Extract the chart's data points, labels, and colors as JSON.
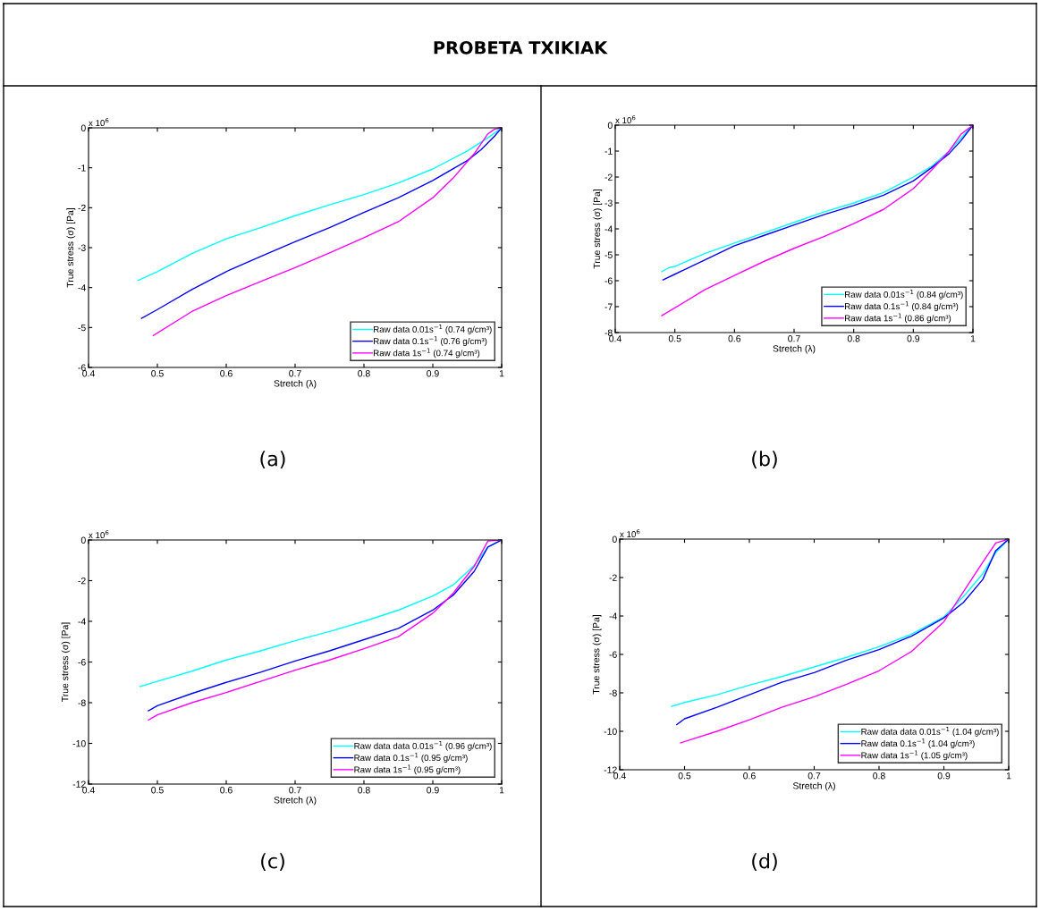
{
  "chart_data": [
    {
      "type": "line",
      "title": "PROBETA TXIKIAK",
      "xlabel": "Stretch (λ)",
      "ylabel": "True stress (σ) [Pa]",
      "annotations": [
        "x 10$^{6}$",
        "(a)"
      ],
      "xlim": [
        0.4,
        1
      ],
      "ylim": [
        -6,
        0
      ],
      "xticks": [
        0.4,
        0.5,
        0.6,
        0.7,
        0.8,
        0.9,
        1
      ],
      "yticks": [
        -6,
        -5,
        -4,
        -3,
        -2,
        -1,
        0
      ],
      "grid": false,
      "legend": "bottom right",
      "series": [
        {
          "name": "Raw data 0.01s$^{−1}$ (0.74 g/cm³)",
          "color": "#00ffff",
          "x": [
            0.472,
            0.5,
            0.55,
            0.6,
            0.65,
            0.7,
            0.75,
            0.8,
            0.85,
            0.9,
            0.95,
            0.98,
            1.0
          ],
          "values": [
            -3.82,
            -3.6,
            -3.15,
            -2.78,
            -2.5,
            -2.2,
            -1.93,
            -1.67,
            -1.38,
            -1.03,
            -0.58,
            -0.25,
            0
          ]
        },
        {
          "name": "Raw data 0.1s$^{−1}$ (0.76 g/cm³)",
          "color": "#0000ff",
          "x": [
            0.477,
            0.5,
            0.55,
            0.6,
            0.65,
            0.7,
            0.75,
            0.8,
            0.85,
            0.9,
            0.95,
            0.97,
            0.99,
            1.0
          ],
          "values": [
            -4.77,
            -4.55,
            -4.05,
            -3.6,
            -3.22,
            -2.85,
            -2.5,
            -2.12,
            -1.75,
            -1.32,
            -0.82,
            -0.55,
            -0.2,
            0
          ]
        },
        {
          "name": "Raw data 1s$^{−1}$ (0.74 g/cm³)",
          "color": "#ff00ff",
          "x": [
            0.494,
            0.55,
            0.6,
            0.65,
            0.7,
            0.75,
            0.8,
            0.85,
            0.9,
            0.93,
            0.96,
            0.98,
            0.99,
            1.0
          ],
          "values": [
            -5.2,
            -4.6,
            -4.2,
            -3.85,
            -3.5,
            -3.13,
            -2.75,
            -2.35,
            -1.75,
            -1.25,
            -0.65,
            -0.15,
            -0.03,
            0
          ]
        }
      ]
    },
    {
      "type": "line",
      "xlabel": "Stretch (λ)",
      "ylabel": "True stress (σ) [Pa]",
      "annotations": [
        "x 10$^{6}$",
        "(b)"
      ],
      "xlim": [
        0.4,
        1
      ],
      "ylim": [
        -8,
        0
      ],
      "xticks": [
        0.4,
        0.5,
        0.6,
        0.7,
        0.8,
        0.9,
        1
      ],
      "yticks": [
        -8,
        -7,
        -6,
        -5,
        -4,
        -3,
        -2,
        -1,
        0
      ],
      "grid": false,
      "legend": "bottom right",
      "series": [
        {
          "name": "Raw data 0.01s$^{−1}$ (0.84 g/cm³)",
          "color": "#00ffff",
          "x": [
            0.478,
            0.49,
            0.5,
            0.55,
            0.6,
            0.65,
            0.7,
            0.75,
            0.8,
            0.85,
            0.9,
            0.93,
            0.96,
            0.98,
            1.0
          ],
          "values": [
            -5.65,
            -5.5,
            -5.45,
            -4.95,
            -4.55,
            -4.15,
            -3.75,
            -3.35,
            -3.0,
            -2.6,
            -2.0,
            -1.6,
            -1.0,
            -0.5,
            0
          ]
        },
        {
          "name": "Raw data 0.1s$^{−1}$ (0.84 g/cm³)",
          "color": "#0000ff",
          "x": [
            0.48,
            0.5,
            0.55,
            0.6,
            0.65,
            0.7,
            0.75,
            0.8,
            0.85,
            0.9,
            0.93,
            0.96,
            0.98,
            1.0
          ],
          "values": [
            -5.97,
            -5.75,
            -5.2,
            -4.65,
            -4.25,
            -3.85,
            -3.45,
            -3.1,
            -2.7,
            -2.15,
            -1.65,
            -1.1,
            -0.6,
            0
          ]
        },
        {
          "name": "Raw data 1s$^{−1}$ (0.86 g/cm³)",
          "color": "#ff00ff",
          "x": [
            0.478,
            0.5,
            0.55,
            0.6,
            0.65,
            0.7,
            0.75,
            0.8,
            0.85,
            0.9,
            0.93,
            0.96,
            0.98,
            1.0
          ],
          "values": [
            -7.35,
            -7.05,
            -6.35,
            -5.8,
            -5.25,
            -4.75,
            -4.3,
            -3.8,
            -3.25,
            -2.45,
            -1.75,
            -1.0,
            -0.35,
            0
          ]
        }
      ]
    },
    {
      "type": "line",
      "xlabel": "Stretch (λ)",
      "ylabel": "True stress (σ) [Pa]",
      "annotations": [
        "x 10$^{6}$",
        "(c)"
      ],
      "xlim": [
        0.4,
        1
      ],
      "ylim": [
        -12,
        0
      ],
      "xticks": [
        0.4,
        0.5,
        0.6,
        0.7,
        0.8,
        0.9,
        1
      ],
      "yticks": [
        -12,
        -10,
        -8,
        -6,
        -4,
        -2,
        0
      ],
      "grid": false,
      "legend": "bottom right",
      "series": [
        {
          "name": "Raw data data 0.01s$^{−1}$ (0.96 g/cm³)",
          "color": "#00ffff",
          "x": [
            0.475,
            0.5,
            0.55,
            0.6,
            0.65,
            0.7,
            0.75,
            0.8,
            0.85,
            0.9,
            0.93,
            0.96,
            0.98,
            1.0
          ],
          "values": [
            -7.2,
            -6.95,
            -6.45,
            -5.9,
            -5.45,
            -4.95,
            -4.5,
            -4.0,
            -3.45,
            -2.75,
            -2.2,
            -1.25,
            -0.35,
            0
          ]
        },
        {
          "name": "Raw data 0.1s$^{−1}$ (0.95 g/cm³)",
          "color": "#0000ff",
          "x": [
            0.487,
            0.5,
            0.55,
            0.6,
            0.65,
            0.7,
            0.75,
            0.8,
            0.85,
            0.9,
            0.93,
            0.96,
            0.98,
            1.0
          ],
          "values": [
            -8.4,
            -8.15,
            -7.55,
            -7.0,
            -6.5,
            -5.95,
            -5.45,
            -4.9,
            -4.35,
            -3.45,
            -2.7,
            -1.55,
            -0.35,
            0
          ]
        },
        {
          "name": "Raw data 1s$^{−1}$ (0.95 g/cm³)",
          "color": "#ff00ff",
          "x": [
            0.487,
            0.5,
            0.55,
            0.6,
            0.65,
            0.7,
            0.75,
            0.8,
            0.85,
            0.9,
            0.93,
            0.96,
            0.98,
            1.0
          ],
          "values": [
            -8.85,
            -8.6,
            -8.0,
            -7.5,
            -6.95,
            -6.4,
            -5.9,
            -5.35,
            -4.75,
            -3.6,
            -2.6,
            -1.3,
            -0.05,
            0
          ]
        }
      ]
    },
    {
      "type": "line",
      "xlabel": "Stretch (λ)",
      "ylabel": "True stress (σ) [Pa]",
      "annotations": [
        "x 10$^{6}$",
        "(d)"
      ],
      "xlim": [
        0.4,
        1
      ],
      "ylim": [
        -12,
        0
      ],
      "xticks": [
        0.4,
        0.5,
        0.6,
        0.7,
        0.8,
        0.9,
        1
      ],
      "yticks": [
        -12,
        -10,
        -8,
        -6,
        -4,
        -2,
        0
      ],
      "grid": false,
      "legend": "bottom right",
      "series": [
        {
          "name": "Raw data data 0.01s$^{−1}$ (1.04 g/cm³)",
          "color": "#00ffff",
          "x": [
            0.48,
            0.5,
            0.55,
            0.6,
            0.65,
            0.7,
            0.75,
            0.8,
            0.85,
            0.9,
            0.93,
            0.96,
            0.98,
            1.0
          ],
          "values": [
            -8.7,
            -8.5,
            -8.1,
            -7.6,
            -7.15,
            -6.65,
            -6.15,
            -5.6,
            -4.95,
            -4.05,
            -3.0,
            -1.8,
            -0.7,
            0
          ]
        },
        {
          "name": "Raw data 0.1s$^{−1}$ (1.04 g/cm³)",
          "color": "#0000ff",
          "x": [
            0.488,
            0.5,
            0.55,
            0.6,
            0.65,
            0.7,
            0.75,
            0.8,
            0.85,
            0.9,
            0.93,
            0.96,
            0.98,
            1.0
          ],
          "values": [
            -9.65,
            -9.35,
            -8.75,
            -8.1,
            -7.45,
            -6.95,
            -6.3,
            -5.75,
            -5.05,
            -4.1,
            -3.3,
            -2.1,
            -0.6,
            0
          ]
        },
        {
          "name": "Raw data 1s$^{−1}$ (1.05 g/cm³)",
          "color": "#ff00ff",
          "x": [
            0.494,
            0.55,
            0.6,
            0.65,
            0.7,
            0.75,
            0.8,
            0.85,
            0.9,
            0.93,
            0.96,
            0.98,
            1.0
          ],
          "values": [
            -10.6,
            -10.0,
            -9.4,
            -8.75,
            -8.2,
            -7.55,
            -6.85,
            -5.85,
            -4.3,
            -2.75,
            -1.2,
            -0.2,
            0
          ]
        }
      ]
    }
  ]
}
